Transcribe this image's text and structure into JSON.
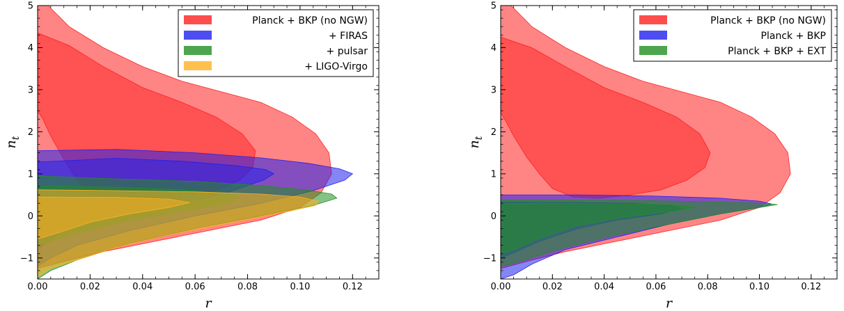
{
  "chart_data": [
    {
      "type": "area",
      "xlabel": "r",
      "ylabel": "n_t",
      "xlim": [
        0,
        0.13
      ],
      "ylim": [
        -1.5,
        5
      ],
      "x_ticks": [
        "0.00",
        "0.02",
        "0.04",
        "0.06",
        "0.08",
        "0.10",
        "0.12"
      ],
      "y_ticks": [
        "−1",
        "0",
        "1",
        "2",
        "3",
        "4",
        "5"
      ],
      "legend_position": "top-right",
      "series": [
        {
          "name": "Planck + BKP (no NGW)",
          "color": "#ff2020",
          "outer": [
            [
              0,
              5.0
            ],
            [
              0.004,
              5.0
            ],
            [
              0.012,
              4.5
            ],
            [
              0.025,
              4.0
            ],
            [
              0.04,
              3.55
            ],
            [
              0.055,
              3.2
            ],
            [
              0.07,
              2.95
            ],
            [
              0.085,
              2.7
            ],
            [
              0.097,
              2.35
            ],
            [
              0.106,
              1.95
            ],
            [
              0.111,
              1.5
            ],
            [
              0.112,
              1.0
            ],
            [
              0.108,
              0.55
            ],
            [
              0.1,
              0.2
            ],
            [
              0.085,
              -0.1
            ],
            [
              0.065,
              -0.35
            ],
            [
              0.045,
              -0.6
            ],
            [
              0.025,
              -0.85
            ],
            [
              0.012,
              -1.05
            ],
            [
              0.003,
              -1.2
            ],
            [
              0,
              -1.25
            ]
          ],
          "inner": [
            [
              0,
              4.35
            ],
            [
              0.012,
              4.05
            ],
            [
              0.025,
              3.55
            ],
            [
              0.04,
              3.05
            ],
            [
              0.055,
              2.7
            ],
            [
              0.068,
              2.35
            ],
            [
              0.078,
              1.95
            ],
            [
              0.083,
              1.55
            ],
            [
              0.082,
              1.15
            ],
            [
              0.077,
              0.85
            ],
            [
              0.07,
              0.65
            ],
            [
              0.06,
              0.5
            ],
            [
              0.048,
              0.4
            ],
            [
              0.035,
              0.35
            ],
            [
              0.025,
              0.4
            ],
            [
              0.018,
              0.6
            ],
            [
              0.014,
              0.95
            ],
            [
              0.01,
              1.35
            ],
            [
              0.005,
              1.9
            ],
            [
              0.002,
              2.3
            ],
            [
              0,
              2.5
            ]
          ]
        },
        {
          "name": "+ FIRAS",
          "color": "#2020ee",
          "outer": [
            [
              0,
              1.55
            ],
            [
              0.03,
              1.58
            ],
            [
              0.06,
              1.5
            ],
            [
              0.085,
              1.38
            ],
            [
              0.103,
              1.25
            ],
            [
              0.115,
              1.12
            ],
            [
              0.12,
              1.0
            ],
            [
              0.117,
              0.85
            ],
            [
              0.105,
              0.6
            ],
            [
              0.085,
              0.3
            ],
            [
              0.06,
              0.0
            ],
            [
              0.035,
              -0.35
            ],
            [
              0.015,
              -0.7
            ],
            [
              0.005,
              -1.0
            ],
            [
              0,
              -1.2
            ]
          ],
          "inner": [
            [
              0,
              1.28
            ],
            [
              0.03,
              1.37
            ],
            [
              0.055,
              1.3
            ],
            [
              0.075,
              1.2
            ],
            [
              0.087,
              1.1
            ],
            [
              0.09,
              1.0
            ],
            [
              0.086,
              0.85
            ],
            [
              0.072,
              0.55
            ],
            [
              0.055,
              0.3
            ],
            [
              0.035,
              0.08
            ],
            [
              0.02,
              -0.1
            ],
            [
              0.01,
              -0.35
            ],
            [
              0.004,
              -0.6
            ],
            [
              0,
              -0.8
            ]
          ]
        },
        {
          "name": "+ pulsar",
          "color": "#209020",
          "outer": [
            [
              0,
              0.95
            ],
            [
              0.03,
              0.88
            ],
            [
              0.06,
              0.82
            ],
            [
              0.085,
              0.72
            ],
            [
              0.102,
              0.62
            ],
            [
              0.112,
              0.52
            ],
            [
              0.114,
              0.42
            ],
            [
              0.105,
              0.25
            ],
            [
              0.085,
              0.0
            ],
            [
              0.06,
              -0.3
            ],
            [
              0.035,
              -0.65
            ],
            [
              0.015,
              -1.05
            ],
            [
              0.005,
              -1.3
            ],
            [
              0,
              -1.5
            ]
          ],
          "inner": [
            [
              0,
              0.72
            ],
            [
              0.03,
              0.68
            ],
            [
              0.055,
              0.62
            ],
            [
              0.07,
              0.55
            ],
            [
              0.077,
              0.45
            ],
            [
              0.072,
              0.3
            ],
            [
              0.055,
              0.12
            ],
            [
              0.035,
              -0.1
            ],
            [
              0.015,
              -0.4
            ],
            [
              0.005,
              -0.6
            ],
            [
              0,
              -0.7
            ]
          ]
        },
        {
          "name": "+ LIGO-Virgo",
          "color": "#ffb020",
          "outer": [
            [
              0,
              0.62
            ],
            [
              0.03,
              0.6
            ],
            [
              0.06,
              0.57
            ],
            [
              0.085,
              0.52
            ],
            [
              0.1,
              0.45
            ],
            [
              0.107,
              0.35
            ],
            [
              0.106,
              0.25
            ],
            [
              0.095,
              0.1
            ],
            [
              0.075,
              -0.15
            ],
            [
              0.05,
              -0.45
            ],
            [
              0.03,
              -0.75
            ],
            [
              0.015,
              -1.05
            ],
            [
              0.005,
              -1.25
            ],
            [
              0,
              -1.45
            ]
          ],
          "inner": [
            [
              0,
              0.45
            ],
            [
              0.03,
              0.44
            ],
            [
              0.05,
              0.4
            ],
            [
              0.058,
              0.32
            ],
            [
              0.05,
              0.2
            ],
            [
              0.035,
              0.05
            ],
            [
              0.02,
              -0.15
            ],
            [
              0.008,
              -0.4
            ],
            [
              0,
              -0.55
            ]
          ]
        }
      ]
    },
    {
      "type": "area",
      "xlabel": "r",
      "ylabel": "n_t",
      "xlim": [
        0,
        0.13
      ],
      "ylim": [
        -1.5,
        5
      ],
      "x_ticks": [
        "0.00",
        "0.02",
        "0.04",
        "0.06",
        "0.08",
        "0.10",
        "0.12"
      ],
      "y_ticks": [
        "−1",
        "0",
        "1",
        "2",
        "3",
        "4",
        "5"
      ],
      "legend_position": "top-right",
      "series": [
        {
          "name": "Planck + BKP (no NGW)",
          "color": "#ff2020",
          "outer": [
            [
              0,
              5.0
            ],
            [
              0.004,
              5.0
            ],
            [
              0.012,
              4.5
            ],
            [
              0.025,
              4.0
            ],
            [
              0.04,
              3.55
            ],
            [
              0.055,
              3.2
            ],
            [
              0.07,
              2.95
            ],
            [
              0.085,
              2.7
            ],
            [
              0.097,
              2.35
            ],
            [
              0.106,
              1.95
            ],
            [
              0.111,
              1.5
            ],
            [
              0.112,
              1.0
            ],
            [
              0.108,
              0.55
            ],
            [
              0.1,
              0.2
            ],
            [
              0.085,
              -0.1
            ],
            [
              0.065,
              -0.35
            ],
            [
              0.045,
              -0.6
            ],
            [
              0.025,
              -0.85
            ],
            [
              0.012,
              -1.05
            ],
            [
              0.003,
              -1.2
            ],
            [
              0,
              -1.25
            ]
          ],
          "inner": [
            [
              0,
              4.25
            ],
            [
              0.012,
              4.0
            ],
            [
              0.025,
              3.55
            ],
            [
              0.04,
              3.05
            ],
            [
              0.055,
              2.7
            ],
            [
              0.068,
              2.35
            ],
            [
              0.077,
              1.95
            ],
            [
              0.081,
              1.5
            ],
            [
              0.079,
              1.15
            ],
            [
              0.072,
              0.85
            ],
            [
              0.062,
              0.62
            ],
            [
              0.05,
              0.5
            ],
            [
              0.038,
              0.42
            ],
            [
              0.028,
              0.45
            ],
            [
              0.02,
              0.65
            ],
            [
              0.015,
              1.0
            ],
            [
              0.01,
              1.4
            ],
            [
              0.005,
              1.9
            ],
            [
              0.002,
              2.25
            ],
            [
              0,
              2.45
            ]
          ]
        },
        {
          "name": "Planck + BKP",
          "color": "#2020ee",
          "outer": [
            [
              0,
              0.5
            ],
            [
              0.03,
              0.5
            ],
            [
              0.06,
              0.47
            ],
            [
              0.085,
              0.42
            ],
            [
              0.1,
              0.35
            ],
            [
              0.105,
              0.28
            ],
            [
              0.1,
              0.2
            ],
            [
              0.085,
              0.05
            ],
            [
              0.065,
              -0.2
            ],
            [
              0.045,
              -0.5
            ],
            [
              0.025,
              -0.8
            ],
            [
              0.012,
              -1.15
            ],
            [
              0.005,
              -1.4
            ],
            [
              0,
              -1.5
            ]
          ],
          "inner": [
            [
              0,
              0.33
            ],
            [
              0.03,
              0.32
            ],
            [
              0.05,
              0.3
            ],
            [
              0.065,
              0.25
            ],
            [
              0.07,
              0.18
            ],
            [
              0.062,
              0.05
            ],
            [
              0.045,
              -0.1
            ],
            [
              0.03,
              -0.3
            ],
            [
              0.015,
              -0.6
            ],
            [
              0.006,
              -0.85
            ],
            [
              0,
              -1.0
            ]
          ]
        },
        {
          "name": "Planck + BKP + EXT",
          "color": "#209020",
          "outer": [
            [
              0,
              0.38
            ],
            [
              0.03,
              0.38
            ],
            [
              0.06,
              0.36
            ],
            [
              0.085,
              0.33
            ],
            [
              0.1,
              0.3
            ],
            [
              0.107,
              0.27
            ],
            [
              0.1,
              0.2
            ],
            [
              0.085,
              0.05
            ],
            [
              0.065,
              -0.2
            ],
            [
              0.045,
              -0.45
            ],
            [
              0.025,
              -0.75
            ],
            [
              0.012,
              -1.0
            ],
            [
              0.004,
              -1.15
            ],
            [
              0,
              -1.2
            ]
          ],
          "inner": [
            [
              0,
              0.3
            ],
            [
              0.03,
              0.3
            ],
            [
              0.055,
              0.28
            ],
            [
              0.07,
              0.25
            ],
            [
              0.075,
              0.2
            ],
            [
              0.065,
              0.1
            ],
            [
              0.045,
              -0.05
            ],
            [
              0.028,
              -0.25
            ],
            [
              0.014,
              -0.55
            ],
            [
              0.005,
              -0.8
            ],
            [
              0,
              -0.9
            ]
          ]
        }
      ]
    }
  ]
}
